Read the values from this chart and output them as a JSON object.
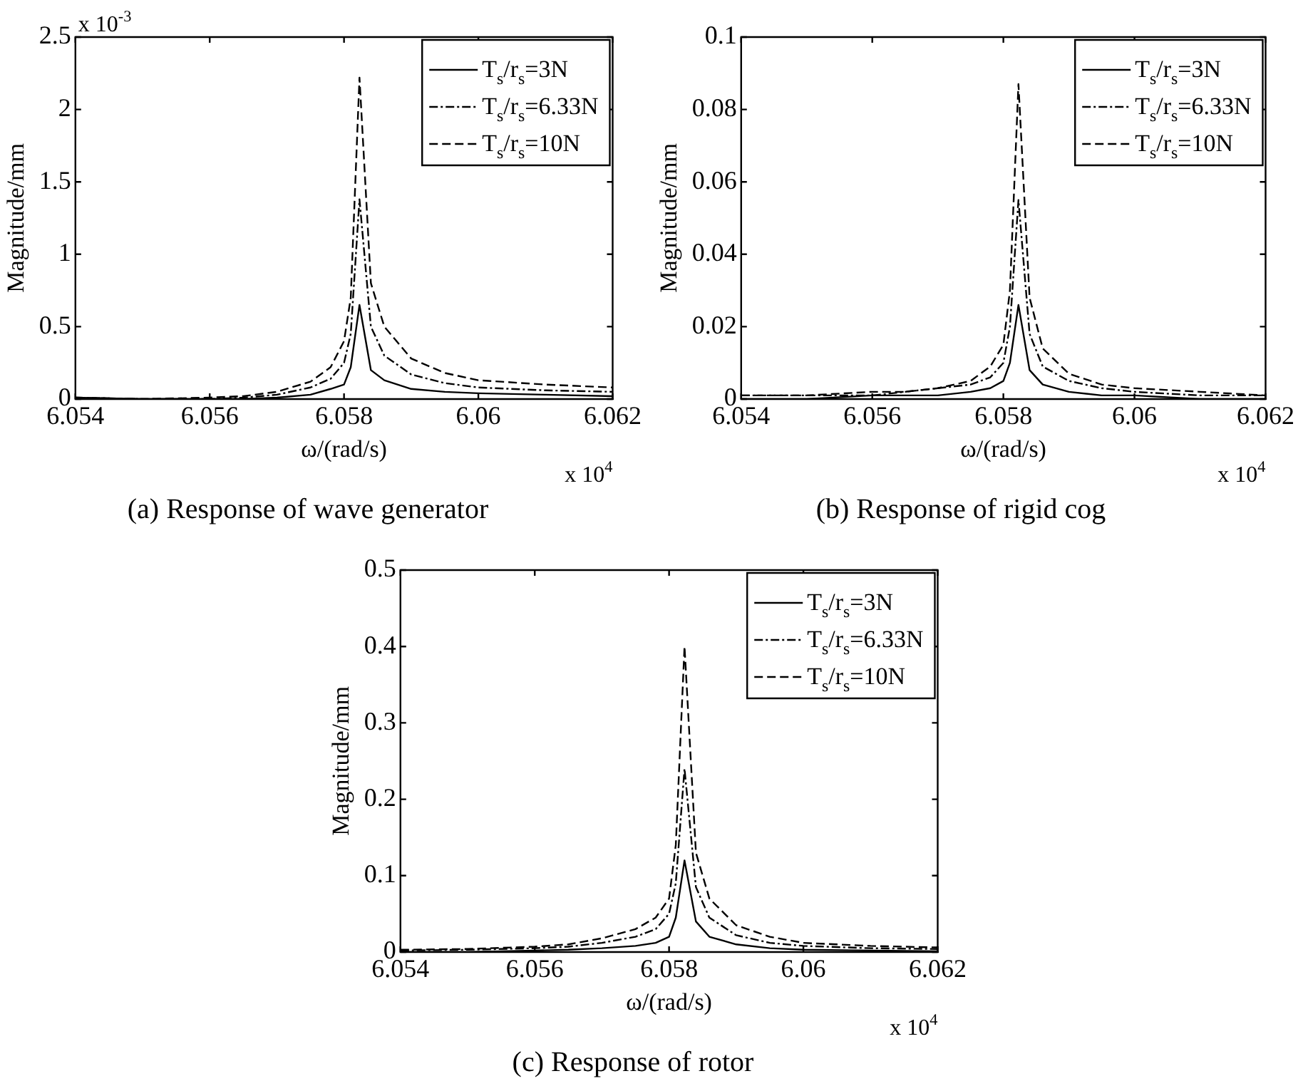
{
  "chart_data": [
    {
      "type": "line",
      "title": "(a) Response of wave generator",
      "xlabel": "ω/(rad/s)",
      "ylabel": "Magnitude/mm",
      "annotations": [
        "x 10$^{4}$",
        "x 10$^{-3}$"
      ],
      "x": [
        6.054,
        6.055,
        6.056,
        6.0565,
        6.057,
        6.0575,
        6.0578,
        6.058,
        6.0581,
        6.05823,
        6.0584,
        6.0586,
        6.059,
        6.0595,
        6.06,
        6.061,
        6.062
      ],
      "series": [
        {
          "name": "T$_{s}$/r$_{s}$=3N",
          "color": "#000000",
          "line_style": "solid",
          "values": [
            0.01,
            0,
            0,
            0,
            0.01,
            0.03,
            0.07,
            0.1,
            0.22,
            0.65,
            0.2,
            0.13,
            0.07,
            0.05,
            0.04,
            0.03,
            0.02
          ]
        },
        {
          "name": "T$_{s}$/r$_{s}$=6.33N",
          "color": "#000000",
          "line_style": "dashdot",
          "values": [
            0.01,
            0,
            0,
            0.01,
            0.03,
            0.08,
            0.14,
            0.25,
            0.45,
            1.38,
            0.5,
            0.3,
            0.17,
            0.11,
            0.08,
            0.06,
            0.05
          ]
        },
        {
          "name": "T$_{s}$/r$_{s}$=10N",
          "color": "#000000",
          "line_style": "dashed",
          "values": [
            0.01,
            0,
            0.01,
            0.02,
            0.05,
            0.12,
            0.22,
            0.4,
            0.7,
            2.22,
            0.8,
            0.5,
            0.28,
            0.18,
            0.13,
            0.1,
            0.08
          ]
        }
      ],
      "xlim": [
        6.054,
        6.062
      ],
      "xticks": [
        6.054,
        6.056,
        6.058,
        6.06,
        6.062
      ],
      "ylim": [
        0,
        2.5
      ],
      "yticks": [
        0,
        0.5,
        1,
        1.5,
        2,
        2.5
      ],
      "grid": false,
      "legend": "top right",
      "marker": "none"
    },
    {
      "type": "line",
      "title": "(b) Response of rigid cog",
      "xlabel": "ω/(rad/s)",
      "ylabel": "Magnitude/mm",
      "annotations": [
        "x 10$^{4}$"
      ],
      "x": [
        6.054,
        6.055,
        6.056,
        6.0565,
        6.057,
        6.0575,
        6.0578,
        6.058,
        6.0581,
        6.05823,
        6.0584,
        6.0586,
        6.059,
        6.0595,
        6.06,
        6.061,
        6.062
      ],
      "series": [
        {
          "name": "T$_{s}$/r$_{s}$=3N",
          "color": "#000000",
          "line_style": "solid",
          "values": [
            0,
            0,
            0.001,
            0.001,
            0.001,
            0.002,
            0.003,
            0.005,
            0.01,
            0.026,
            0.008,
            0.004,
            0.002,
            0.001,
            0.001,
            0,
            0
          ]
        },
        {
          "name": "T$_{s}$/r$_{s}$=6.33N",
          "color": "#000000",
          "line_style": "dashdot",
          "values": [
            0.001,
            0.001,
            0.001,
            0.002,
            0.003,
            0.004,
            0.006,
            0.01,
            0.02,
            0.055,
            0.018,
            0.009,
            0.005,
            0.003,
            0.002,
            0.001,
            0.001
          ]
        },
        {
          "name": "T$_{s}$/r$_{s}$=10N",
          "color": "#000000",
          "line_style": "dashed",
          "values": [
            0.001,
            0.001,
            0.002,
            0.002,
            0.003,
            0.005,
            0.009,
            0.015,
            0.03,
            0.087,
            0.028,
            0.014,
            0.007,
            0.004,
            0.003,
            0.002,
            0.001
          ]
        }
      ],
      "xlim": [
        6.054,
        6.062
      ],
      "xticks": [
        6.054,
        6.056,
        6.058,
        6.06,
        6.062
      ],
      "ylim": [
        0,
        0.1
      ],
      "yticks": [
        0,
        0.02,
        0.04,
        0.06,
        0.08,
        0.1
      ],
      "grid": false,
      "legend": "top right",
      "marker": "none"
    },
    {
      "type": "line",
      "title": "(c) Response of rotor",
      "xlabel": "ω/(rad/s)",
      "ylabel": "Magnitude/mm",
      "annotations": [
        "x 10$^{4}$"
      ],
      "x": [
        6.054,
        6.055,
        6.056,
        6.0565,
        6.057,
        6.0575,
        6.0578,
        6.058,
        6.0581,
        6.05823,
        6.0584,
        6.0586,
        6.059,
        6.0595,
        6.06,
        6.061,
        6.062
      ],
      "series": [
        {
          "name": "T$_{s}$/r$_{s}$=3N",
          "color": "#000000",
          "line_style": "solid",
          "values": [
            0,
            0,
            0.002,
            0.003,
            0.005,
            0.008,
            0.012,
            0.02,
            0.045,
            0.12,
            0.04,
            0.02,
            0.01,
            0.005,
            0.003,
            0.002,
            0.001
          ]
        },
        {
          "name": "T$_{s}$/r$_{s}$=6.33N",
          "color": "#000000",
          "line_style": "dashdot",
          "values": [
            0.002,
            0.003,
            0.005,
            0.007,
            0.012,
            0.02,
            0.03,
            0.05,
            0.09,
            0.24,
            0.085,
            0.045,
            0.022,
            0.012,
            0.008,
            0.005,
            0.004
          ]
        },
        {
          "name": "T$_{s}$/r$_{s}$=10N",
          "color": "#000000",
          "line_style": "dashed",
          "values": [
            0.003,
            0.004,
            0.007,
            0.01,
            0.018,
            0.03,
            0.045,
            0.07,
            0.14,
            0.4,
            0.13,
            0.07,
            0.035,
            0.02,
            0.012,
            0.008,
            0.006
          ]
        }
      ],
      "xlim": [
        6.054,
        6.062
      ],
      "xticks": [
        6.054,
        6.056,
        6.058,
        6.06,
        6.062
      ],
      "ylim": [
        0,
        0.5
      ],
      "yticks": [
        0,
        0.1,
        0.2,
        0.3,
        0.4,
        0.5
      ],
      "grid": false,
      "legend": "top right",
      "marker": "none"
    }
  ]
}
